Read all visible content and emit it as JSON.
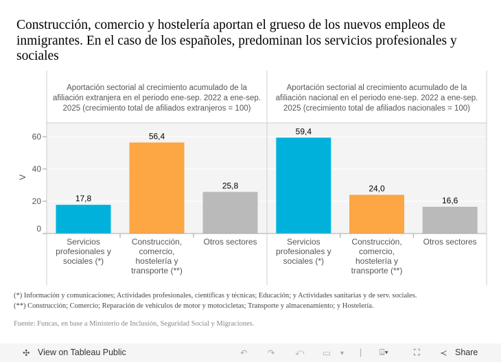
{
  "title": "Construcción, comercio y hostelería aportan el grueso de los nuevos empleos de inmigrantes. En el caso de los españoles, predominan los servicios profesionales y sociales",
  "chart_data": [
    {
      "type": "bar",
      "title": "Aportación sectorial al crecimiento acumulado de la afiliación extranjera en el periodo ene-sep. 2022 a ene-sep. 2025 (crecimiento total de afiliados extranjeros = 100)",
      "title_lines": [
        "Aportación sectorial al crecimiento acumulado de la",
        "afiliación extranjera en el periodo ene-sep. 2022 a ene-sep.",
        "2025 (crecimiento total de afiliados extranjeros = 100)"
      ],
      "categories": [
        "Servicios profesionales y sociales (*)",
        "Construcción, comercio, hostelería y transporte (**)",
        "Otros sectores"
      ],
      "values": [
        17.8,
        56.4,
        25.8
      ],
      "labels": [
        "17,8",
        "56,4",
        "25,8"
      ],
      "ylabel": "V",
      "ylim": [
        0,
        68.5
      ],
      "yticks": [
        0,
        20,
        40,
        60
      ],
      "grid": true
    },
    {
      "type": "bar",
      "title": "Aportación sectorial al crecimiento acumulado de la afiliación nacional en el periodo ene-sep. 2022 a ene-sep. 2025 (crecimiento total de afiliados nacionales = 100)",
      "title_lines": [
        "Aportación sectorial al crecimiento acumulado de la",
        "afiliación nacional en el periodo ene-sep. 2022 a ene-sep.",
        "2025 (crecimiento total de afiliados nacionales = 100)"
      ],
      "categories": [
        "Servicios profesionales y sociales (*)",
        "Construcción, comercio, hostelería y transporte (**)",
        "Otros sectores"
      ],
      "values": [
        59.4,
        24.0,
        16.6
      ],
      "labels": [
        "59,4",
        "24,0",
        "16,6"
      ],
      "ylim": [
        0,
        68.5
      ],
      "grid": true
    }
  ],
  "category_lines": [
    [
      "Servicios",
      "profesionales y",
      "sociales (*)"
    ],
    [
      "Construcción,",
      "comercio,",
      "hostelería y",
      "transporte (**)"
    ],
    [
      "Otros sectores"
    ]
  ],
  "colors": [
    "#00b2db",
    "#fca644",
    "#bababa"
  ],
  "notes": {
    "n1": "(*) Información y comunicaciones; Actividades profesionales, científicas y técnicas; Educación; y Actividades sanitarias y de serv. sociales.",
    "n2": "(**) Construcción; Comercio; Reparación de vehículos de motor y motocicletas; Transporte y almacenamiento; y Hostelería.",
    "source": "Fuente: Funcas, en base a Ministerio de Inclusión, Seguridad Social y Migraciones."
  },
  "toolbar": {
    "view": "View on Tableau Public",
    "share": "Share"
  }
}
